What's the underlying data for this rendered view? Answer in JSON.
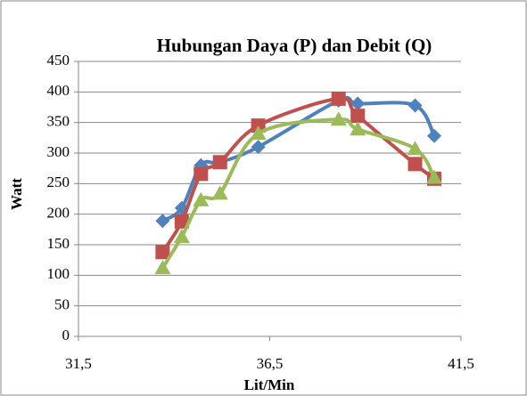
{
  "chart_data": {
    "type": "scatter-smooth",
    "title": "Hubungan Daya (P) dan Debit (Q)",
    "x_label": "Lit/Min",
    "y_label": "Watt",
    "x": [
      33.7,
      34.2,
      34.7,
      35.2,
      36.2,
      38.3,
      38.8,
      40.3,
      40.8
    ],
    "series": [
      {
        "color": "#4f81bd",
        "marker": "diamond",
        "values": [
          189,
          210,
          280,
          285,
          310,
          386,
          381,
          378,
          328
        ]
      },
      {
        "color": "#c0504d",
        "marker": "square",
        "values": [
          138,
          188,
          266,
          285,
          345,
          389,
          361,
          282,
          258
        ]
      },
      {
        "color": "#9bbb59",
        "marker": "triangle",
        "values": [
          112,
          163,
          223,
          234,
          332,
          355,
          339,
          307,
          260
        ]
      }
    ],
    "xlim": [
      31.5,
      41.5
    ],
    "xticks": [
      {
        "value": 31.5,
        "label": "31,5"
      },
      {
        "value": 36.5,
        "label": "36,5"
      },
      {
        "value": 41.5,
        "label": "41,5"
      }
    ],
    "ylim": [
      0,
      450
    ],
    "yticks": [
      0,
      50,
      100,
      150,
      200,
      250,
      300,
      350,
      400,
      450
    ],
    "grid": true
  }
}
